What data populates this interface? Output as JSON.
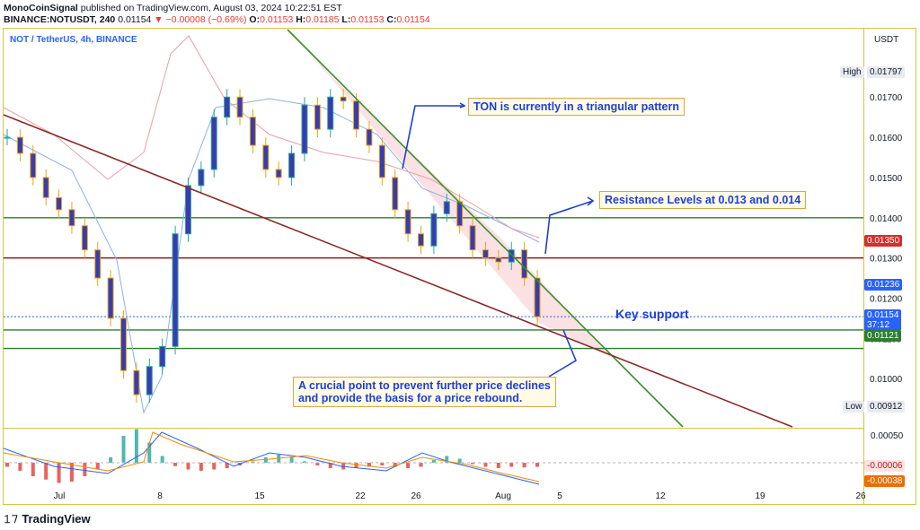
{
  "header": {
    "line1_author": "MonoCoinSignal",
    "line1_rest": " published on TradingView.com, August 03, 2024 10:22:51 EST",
    "line2_symbol": "BINANCE:NOTUSDT, 240",
    "line2_price": " 0.01154 ",
    "line2_change": "▼ −0.00008 (−0.69%)",
    "ohlc_o_label": " O:",
    "ohlc_o": "0.01153",
    "ohlc_h_label": " H:",
    "ohlc_h": "0.01185",
    "ohlc_l_label": " L:",
    "ohlc_l": "0.01153",
    "ohlc_c_label": " C:",
    "ohlc_c": "0.01154"
  },
  "chart_symbol_label": "NOT / TetherUS, 4h, BINANCE",
  "axis_unit": "USDT",
  "price_tags": {
    "high_label": "High",
    "high_value": "0.01797",
    "low_label": "Low",
    "low_value": "0.00912",
    "r1": "0.01350",
    "blue": "0.01236",
    "last": "0.01154",
    "countdown": "37:12",
    "s1": "0.01121",
    "osc1": "-0.00006",
    "osc2": "-0.00038",
    "osc_top": "0.00050"
  },
  "annotations": {
    "triangle": "TON is currently in a triangular pattern",
    "resistance": "Resistance Levels at 0.013 and 0.014",
    "key_support": "Key support",
    "crucial_1": "A crucial point to prevent further price declines",
    "crucial_2": "and provide the basis for a price rebound."
  },
  "logo": "TradingView",
  "colors": {
    "up": "#26a69a",
    "down": "#e5a80f",
    "candle_body": "#3b3bb0",
    "downtrend_line": "#3a8f2a",
    "support_line": "#8b2a2a",
    "triangle_fill": "#f8c8cc",
    "resistance_line": "#8b1a1a",
    "green_level": "#2e7d32",
    "arrow": "#2140c8"
  },
  "chart_data": {
    "type": "candlestick",
    "timeframe": "4h",
    "ylim": [
      0.0088,
      0.0187
    ],
    "y_ticks": [
      0.017,
      0.016,
      0.015,
      0.014,
      0.013,
      0.012,
      0.011,
      0.01
    ],
    "y_tick_labels": [
      "0.01700",
      "0.01600",
      "0.01500",
      "0.01400",
      "0.01300",
      "0.01200",
      "0.01100",
      "0.01000"
    ],
    "x_tick_labels": [
      "Jul",
      "8",
      "15",
      "22",
      "26",
      "Aug",
      "5",
      "12",
      "19",
      "26"
    ],
    "horizontal_levels": [
      {
        "value": 0.014,
        "color": "#2e7d32"
      },
      {
        "value": 0.013,
        "color": "#8b1a1a"
      },
      {
        "value": 0.01121,
        "color": "#2e7d32"
      },
      {
        "value": 0.01075,
        "color": "#2e7d32"
      }
    ],
    "close_path": [
      0.016,
      0.0156,
      0.015,
      0.0145,
      0.0142,
      0.0138,
      0.0132,
      0.0125,
      0.0115,
      0.0102,
      0.0096,
      0.0103,
      0.0108,
      0.0136,
      0.0148,
      0.0152,
      0.0165,
      0.017,
      0.0165,
      0.0158,
      0.0152,
      0.015,
      0.0156,
      0.0168,
      0.0162,
      0.017,
      0.0169,
      0.0162,
      0.0158,
      0.015,
      0.0142,
      0.0136,
      0.0133,
      0.0141,
      0.0144,
      0.0138,
      0.0132,
      0.013,
      0.0129,
      0.0132,
      0.0125,
      0.01154
    ],
    "oscillator": {
      "histogram": [
        -6e-05,
        -0.00012,
        -0.0002,
        -0.00025,
        -0.0003,
        -0.00028,
        -0.0002,
        -0.0001,
        8e-05,
        0.0004,
        0.0005,
        0.0003,
        0.0001,
        -5e-05,
        -0.0001,
        -0.00012,
        -0.0001,
        -8e-05,
        -4e-05,
        2e-05,
        8e-05,
        0.00012,
        8e-05,
        2e-05,
        -4e-05,
        -8e-05,
        -0.0001,
        -8e-05,
        -6e-05,
        -4e-05,
        -6e-05,
        -8e-05,
        -6e-05,
        4e-05,
        0.0001,
        6e-05,
        -2e-05,
        -6e-05,
        -8e-05,
        -6e-05,
        -7e-05,
        -6e-05
      ],
      "last_values": [
        -6e-05,
        -0.00038
      ]
    }
  }
}
